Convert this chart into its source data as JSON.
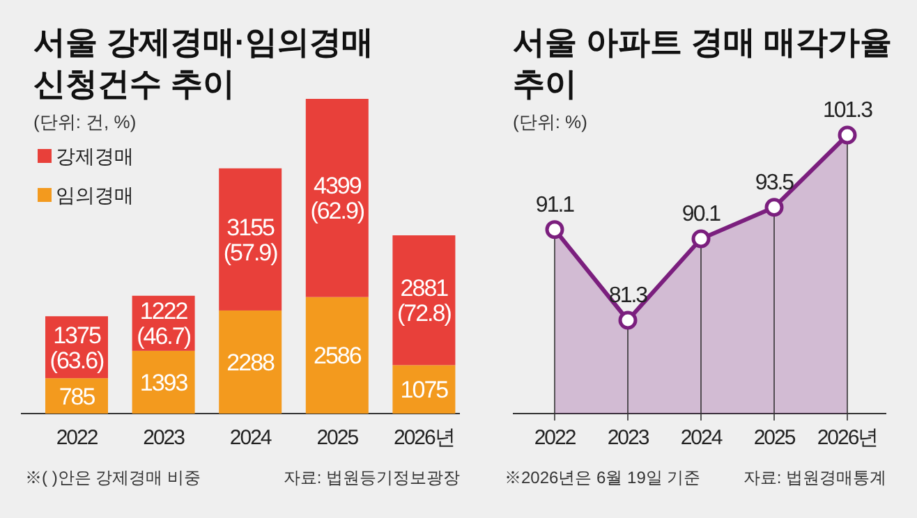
{
  "chart_data": [
    {
      "type": "bar",
      "title": "서울 강제경매·임의경매\n신청건수 추이",
      "subtitle": "(단위: 건, %)",
      "categories": [
        "2022",
        "2023",
        "2024",
        "2025",
        "2026년"
      ],
      "stacked": true,
      "legend": "top left",
      "series": [
        {
          "name": "임의경매",
          "color": "#f39a1e",
          "values": [
            785,
            1393,
            2288,
            2586,
            1075
          ],
          "value_labels": [
            "785",
            "1393",
            "2288",
            "2586",
            "1075"
          ]
        },
        {
          "name": "강제경매",
          "color": "#e8403a",
          "values": [
            1375,
            1222,
            3155,
            4399,
            2881
          ],
          "value_labels": [
            "1375\n(63.6)",
            "1222\n(46.7)",
            "3155\n(57.9)",
            "4399\n(62.9)",
            "2881\n(72.8)"
          ]
        }
      ],
      "annotations": [
        "※( )안은 강제경매 비중",
        "자료: 법원등기정보광장"
      ]
    },
    {
      "type": "area",
      "title": "서울 아파트 경매 매각가율\n추이",
      "subtitle": "(단위: %)",
      "categories": [
        "2022",
        "2023",
        "2024",
        "2025",
        "2026년"
      ],
      "data_labels": true,
      "marker": "circle",
      "series": [
        {
          "color": "#7b1f7e",
          "values": [
            91.1,
            81.3,
            90.1,
            93.5,
            101.3
          ]
        }
      ],
      "annotations": [
        "※2026년은 6월 19일 기준",
        "자료: 법원경매통계"
      ]
    }
  ]
}
